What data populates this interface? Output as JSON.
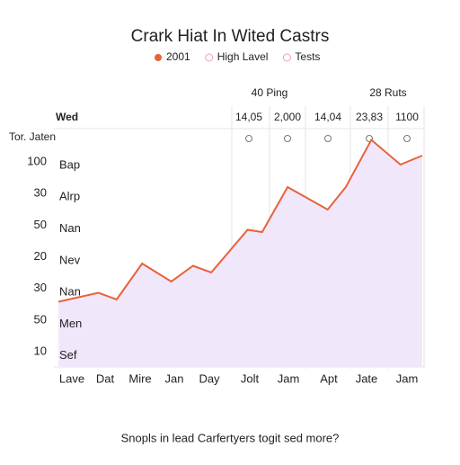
{
  "chart_data": {
    "type": "area",
    "title": "Crark Hiat In Wited Castrs",
    "legend": [
      {
        "name": "2001",
        "color": "#e8623a",
        "marker": "dot"
      },
      {
        "name": "High Lavel",
        "color": "#e8a0b4",
        "marker": "ring"
      },
      {
        "name": "Tests",
        "color": "#e8a0b4",
        "marker": "ring"
      }
    ],
    "headers": [
      "40 Ping",
      "28 Ruts"
    ],
    "row_label": "Wed",
    "row_cells": [
      "14,05",
      "2,000",
      "14,04",
      "23,83",
      "1100"
    ],
    "corner_label": "Tor. Jaten",
    "left_numbers": [
      "100",
      "30",
      "50",
      "20",
      "30",
      "50",
      "10"
    ],
    "left_words": [
      "Bap",
      "Alrp",
      "Nan",
      "Nev",
      "Nan",
      "Men",
      "Sef"
    ],
    "bottom_labels": [
      "Lave",
      "Dat",
      "Mire",
      "Jan",
      "Day",
      "Jolt",
      "Jam",
      "Apt",
      "Jate",
      "Jam"
    ],
    "x": [
      0,
      11,
      16,
      23,
      31,
      37,
      42,
      52,
      56,
      63,
      74,
      79,
      86,
      94,
      100
    ],
    "series": [
      {
        "color": "#e8623a",
        "fill": "#f1e7fb",
        "values": [
          29,
          33,
          30,
          46,
          38,
          45,
          42,
          61,
          60,
          80,
          70,
          80,
          101,
          90,
          94
        ]
      }
    ],
    "xlim": [
      0,
      100
    ],
    "ylim": [
      0,
      105
    ],
    "footer": "Snopls in lead Carfertyers togit sed more?"
  }
}
